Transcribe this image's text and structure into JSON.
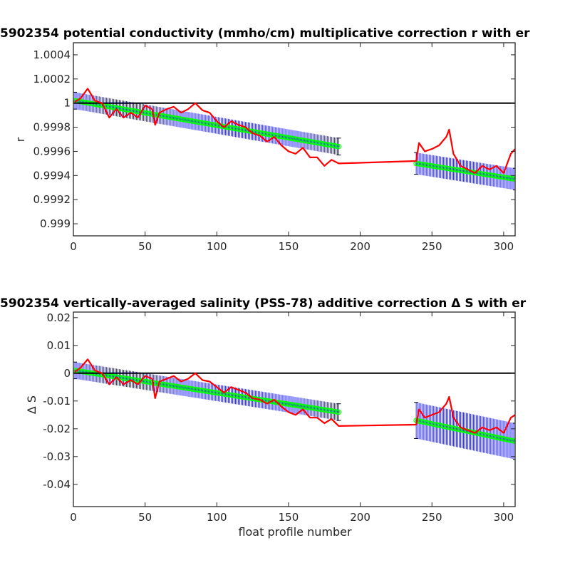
{
  "chart_data": [
    {
      "type": "line",
      "title": "5902354 potential conductivity (mmho/cm) multiplicative correction r with er",
      "xlabel": "",
      "ylabel": "r",
      "xlim": [
        0,
        308
      ],
      "ylim": [
        0.9989,
        1.0005
      ],
      "xticks": [
        0,
        50,
        100,
        150,
        200,
        250,
        300
      ],
      "yticks": [
        0.999,
        0.9992,
        0.9994,
        0.9996,
        0.9998,
        1,
        1.0002,
        1.0004
      ],
      "ytick_labels": [
        "0.999",
        "0.9992",
        "0.9994",
        "0.9996",
        "0.9998",
        "1",
        "1.0002",
        "1.0004"
      ],
      "reference_line": 1,
      "colors": {
        "reference": "#000000",
        "fit": "#00ff00",
        "error_bars": "#0000ff",
        "measured": "#ff0000"
      },
      "series": [
        {
          "role": "fit",
          "segments": [
            {
              "x": [
                1,
                185
              ],
              "y": [
                1.00002,
                0.99964
              ]
            },
            {
              "x": [
                239,
                308
              ],
              "y": [
                0.9995,
                0.99937
              ]
            }
          ],
          "error_halfwidth": [
            7e-05,
            9e-05
          ]
        },
        {
          "role": "measured",
          "x": [
            1,
            5,
            10,
            15,
            20,
            25,
            30,
            35,
            40,
            45,
            50,
            55,
            57,
            60,
            65,
            70,
            75,
            80,
            85,
            90,
            95,
            100,
            105,
            110,
            115,
            120,
            125,
            130,
            135,
            140,
            145,
            150,
            155,
            160,
            165,
            170,
            175,
            180,
            185,
            239,
            241,
            245,
            250,
            255,
            260,
            262,
            265,
            270,
            275,
            280,
            285,
            290,
            295,
            300,
            305,
            308
          ],
          "y": [
            1.00001,
            1.00004,
            1.00012,
            1.00002,
            1.0,
            0.99988,
            0.99995,
            0.99988,
            0.99992,
            0.99988,
            0.99998,
            0.99995,
            0.99982,
            0.99992,
            0.99995,
            0.99997,
            0.99992,
            0.99995,
            1.0,
            0.99994,
            0.99992,
            0.99985,
            0.9998,
            0.99985,
            0.99982,
            0.9998,
            0.99975,
            0.99973,
            0.99968,
            0.99972,
            0.99965,
            0.9996,
            0.99958,
            0.99963,
            0.99955,
            0.99955,
            0.99948,
            0.99953,
            0.9995,
            0.99952,
            0.99967,
            0.9996,
            0.99962,
            0.99965,
            0.99972,
            0.99978,
            0.99958,
            0.99948,
            0.99945,
            0.99942,
            0.99948,
            0.99945,
            0.99948,
            0.99942,
            0.99958,
            0.99962
          ]
        }
      ]
    },
    {
      "type": "line",
      "title": "5902354 vertically-averaged salinity (PSS-78) additive correction Δ S with er",
      "xlabel": "float profile number",
      "ylabel": "Δ S",
      "xlim": [
        0,
        308
      ],
      "ylim": [
        -0.048,
        0.022
      ],
      "xticks": [
        0,
        50,
        100,
        150,
        200,
        250,
        300
      ],
      "yticks": [
        -0.04,
        -0.03,
        -0.02,
        -0.01,
        0,
        0.01,
        0.02
      ],
      "ytick_labels": [
        "-0.04",
        "-0.03",
        "-0.02",
        "-0.01",
        "0",
        "0.01",
        "0.02"
      ],
      "reference_line": 0,
      "colors": {
        "reference": "#000000",
        "fit": "#00ff00",
        "error_bars": "#0000ff",
        "measured": "#ff0000"
      },
      "series": [
        {
          "role": "fit",
          "segments": [
            {
              "x": [
                1,
                185
              ],
              "y": [
                0.001,
                -0.014
              ]
            },
            {
              "x": [
                239,
                308
              ],
              "y": [
                -0.017,
                -0.0245
              ]
            }
          ],
          "error_halfwidth": [
            0.003,
            0.0065
          ]
        },
        {
          "role": "measured",
          "x": [
            1,
            5,
            10,
            15,
            20,
            25,
            30,
            35,
            40,
            45,
            50,
            55,
            57,
            60,
            65,
            70,
            75,
            80,
            85,
            90,
            95,
            100,
            105,
            110,
            115,
            120,
            125,
            130,
            135,
            140,
            145,
            150,
            155,
            160,
            165,
            170,
            175,
            180,
            185,
            239,
            241,
            245,
            250,
            255,
            260,
            262,
            265,
            270,
            275,
            280,
            285,
            290,
            295,
            300,
            305,
            308
          ],
          "y": [
            0.0005,
            0.002,
            0.005,
            0.001,
            0.0,
            -0.004,
            -0.0015,
            -0.004,
            -0.0025,
            -0.004,
            -0.001,
            -0.002,
            -0.009,
            -0.003,
            -0.002,
            -0.001,
            -0.003,
            -0.002,
            0.0,
            -0.0025,
            -0.003,
            -0.005,
            -0.007,
            -0.005,
            -0.006,
            -0.007,
            -0.009,
            -0.0095,
            -0.011,
            -0.0095,
            -0.012,
            -0.014,
            -0.015,
            -0.013,
            -0.016,
            -0.016,
            -0.018,
            -0.0165,
            -0.019,
            -0.0185,
            -0.013,
            -0.016,
            -0.015,
            -0.014,
            -0.011,
            -0.0085,
            -0.016,
            -0.0195,
            -0.0205,
            -0.0215,
            -0.0195,
            -0.0205,
            -0.0195,
            -0.0215,
            -0.016,
            -0.015
          ]
        }
      ]
    }
  ]
}
